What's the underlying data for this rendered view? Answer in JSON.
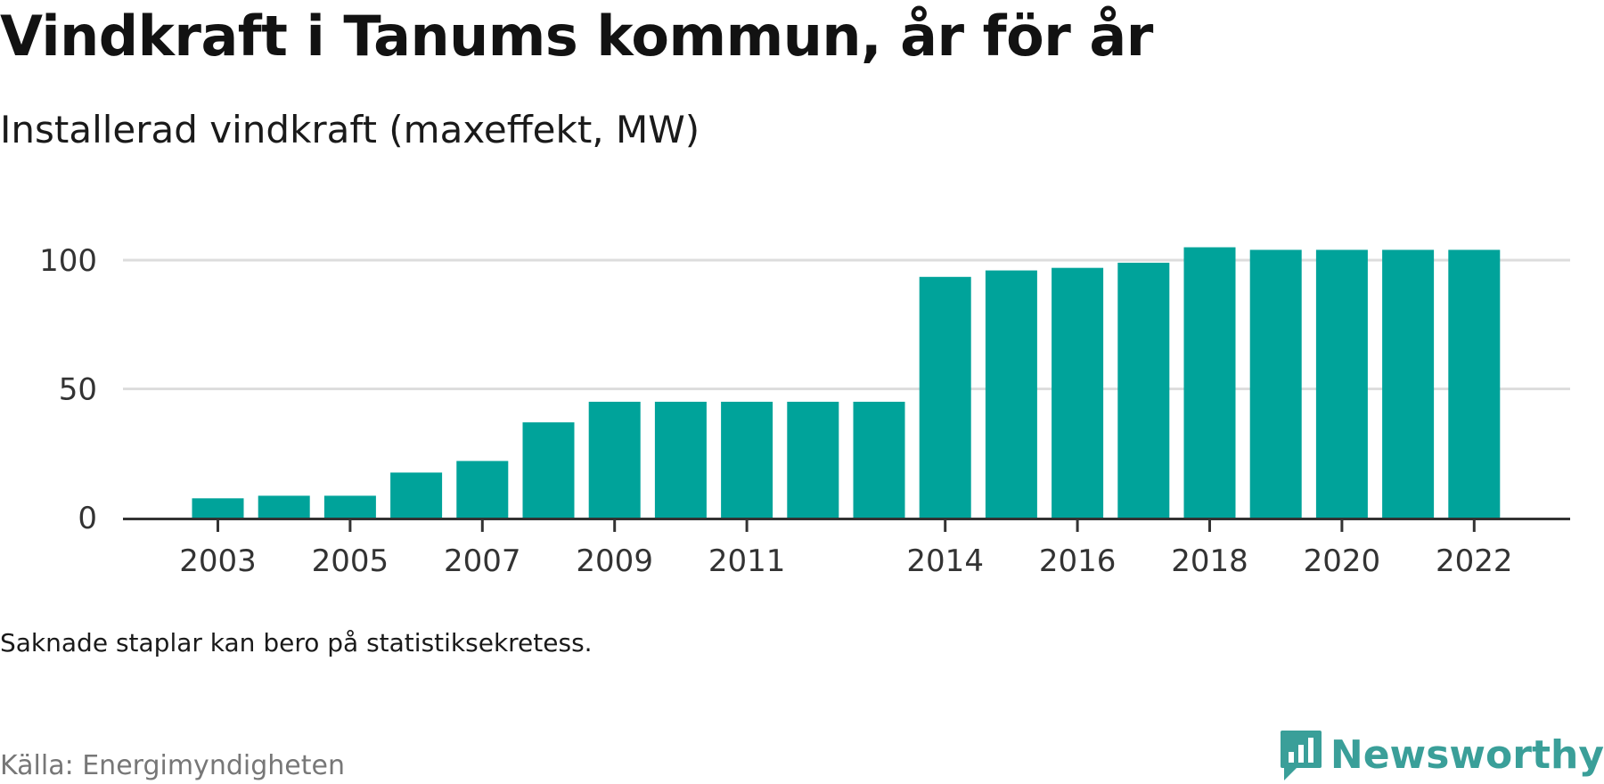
{
  "header": {
    "title": "Vindkraft i Tanums kommun, år för år",
    "subtitle": "Installerad vindkraft (maxeffekt, MW)"
  },
  "footer": {
    "note": "Saknade staplar kan bero på statistiksekretess.",
    "source": "Källa: Energimyndigheten",
    "brand": "Newsworthy",
    "brand_icon": "newsworthy-logo-icon"
  },
  "colors": {
    "bar": "#00a39a",
    "gridline": "#dddddd",
    "axis": "#333333",
    "brand": "#3a9f99"
  },
  "chart_data": {
    "type": "bar",
    "categories": [
      2003,
      2004,
      2005,
      2006,
      2007,
      2008,
      2009,
      2010,
      2011,
      2012,
      2013,
      2014,
      2015,
      2016,
      2017,
      2018,
      2019,
      2020,
      2021,
      2022
    ],
    "values": [
      7.5,
      8.5,
      8.5,
      17.5,
      22,
      37,
      45,
      45,
      45,
      45,
      45,
      93.5,
      96,
      97,
      99,
      105,
      104,
      104,
      104,
      104
    ],
    "title": "Vindkraft i Tanums kommun, år för år",
    "subtitle": "Installerad vindkraft (maxeffekt, MW)",
    "xlabel": "",
    "ylabel": "",
    "ylim": [
      0,
      110
    ],
    "yticks": [
      0,
      50,
      100
    ],
    "xtick_labels": [
      "2003",
      "2005",
      "2007",
      "2009",
      "2011",
      "2014",
      "2016",
      "2018",
      "2020",
      "2022"
    ],
    "grid": true,
    "legend": "none"
  }
}
